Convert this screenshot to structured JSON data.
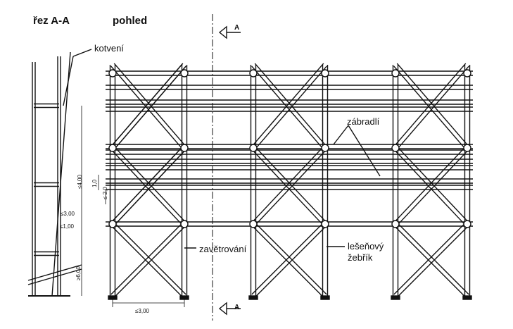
{
  "titles": {
    "section": "řez A-A",
    "view": "pohled"
  },
  "labels": {
    "anchoring": "kotvení",
    "railing": "zábradlí",
    "bracing": "zavětrování",
    "ladder_line1": "lešeňový",
    "ladder_line2": "žebřík"
  },
  "section_marks": {
    "top": "A",
    "bottom": "A"
  },
  "dimensions": {
    "bay_height": "≤4,00",
    "ledger_gap_1": "≤3,00",
    "bottom_height": "≥6,00",
    "depth": "≤1,00",
    "rail_1": "1,0",
    "rail_2": "≤ 2,0",
    "bay_width": "≤3,00"
  }
}
